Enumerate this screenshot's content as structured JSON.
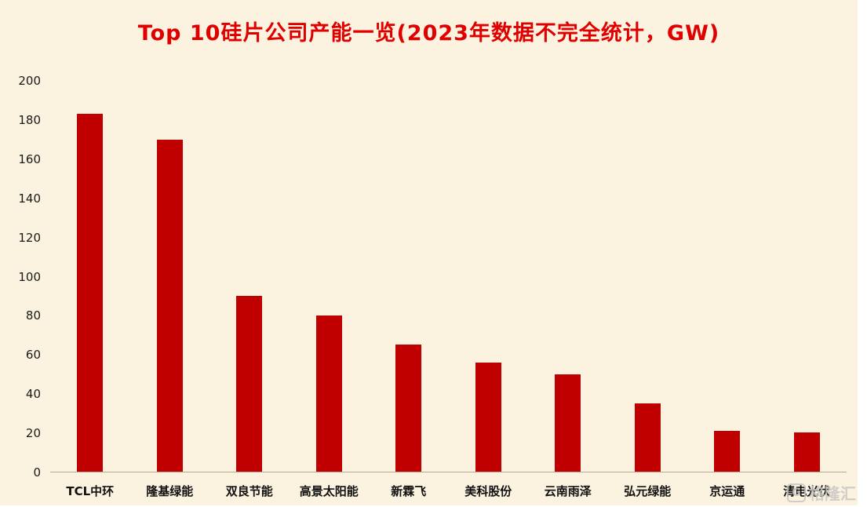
{
  "title": "Top 10硅片公司产能一览(2023年数据不完全统计，GW)",
  "watermark": {
    "text": "格隆汇"
  },
  "colors": {
    "background": "#fbf2df",
    "bar": "#c00000",
    "title": "#e00000"
  },
  "chart_data": {
    "type": "bar",
    "title": "Top 10硅片公司产能一览(2023年数据不完全统计，GW)",
    "categories": [
      "TCL中环",
      "隆基绿能",
      "双良节能",
      "高景太阳能",
      "新霖飞",
      "美科股份",
      "云南雨泽",
      "弘元绿能",
      "京运通",
      "清电光伏"
    ],
    "values": [
      183,
      170,
      90,
      80,
      65,
      56,
      50,
      35,
      21,
      20
    ],
    "xlabel": "",
    "ylabel": "",
    "ylim": [
      0,
      200
    ],
    "yticks": [
      0,
      20,
      40,
      60,
      80,
      100,
      120,
      140,
      160,
      180,
      200
    ],
    "grid": false,
    "legend": false,
    "bar_color": "#c00000"
  }
}
